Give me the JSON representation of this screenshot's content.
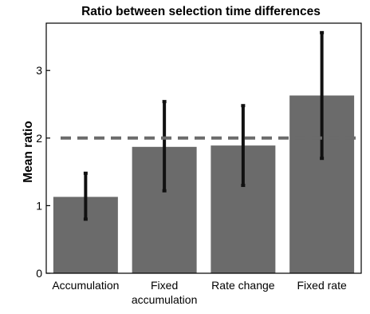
{
  "chart_data": {
    "type": "bar",
    "title": "Ratio between selection time differences",
    "xlabel": "",
    "ylabel": "Mean ratio",
    "categories": [
      [
        "Accumulation"
      ],
      [
        "Fixed",
        "accumulation"
      ],
      [
        "Rate change"
      ],
      [
        "Fixed rate"
      ]
    ],
    "values": [
      1.13,
      1.87,
      1.89,
      2.63
    ],
    "error_low": [
      0.8,
      1.22,
      1.3,
      1.7
    ],
    "error_high": [
      1.48,
      2.54,
      2.48,
      3.56
    ],
    "reference_line": 2,
    "ylim": [
      0,
      3.7
    ],
    "yticks": [
      0,
      1,
      2,
      3
    ],
    "grid": false,
    "colors": {
      "bar": "#6b6b6b",
      "error_bar": "#111111",
      "reference_line": "#6b6b6b",
      "axis": "#000000"
    }
  }
}
